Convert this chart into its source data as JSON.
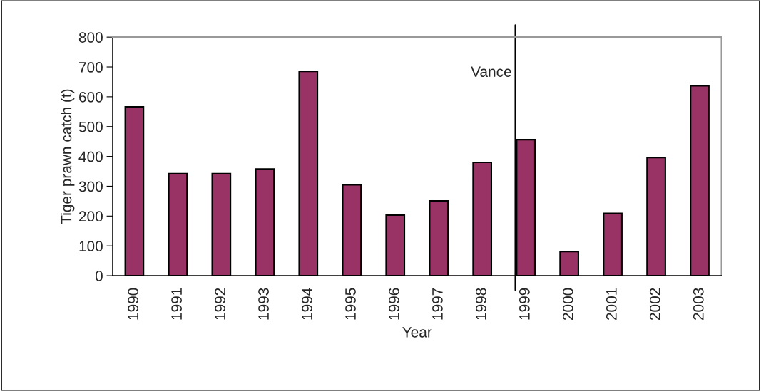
{
  "chart_data": {
    "type": "bar",
    "xlabel": "Year",
    "ylabel": "Tiger prawn catch (t)",
    "categories": [
      "1990",
      "1991",
      "1992",
      "1993",
      "1994",
      "1995",
      "1996",
      "1997",
      "1998",
      "1999",
      "2000",
      "2001",
      "2002",
      "2003"
    ],
    "values": [
      566,
      342,
      342,
      358,
      685,
      305,
      203,
      251,
      380,
      456,
      81,
      209,
      396,
      637
    ],
    "color": "#993366",
    "ylim": [
      0,
      800
    ],
    "yticks": [
      0,
      100,
      200,
      300,
      400,
      500,
      600,
      700,
      800
    ],
    "grid": false,
    "legend": false,
    "ref_lines": [
      {
        "axis": "x",
        "value": "1999",
        "label": "Vance",
        "color": "#000000"
      }
    ]
  }
}
